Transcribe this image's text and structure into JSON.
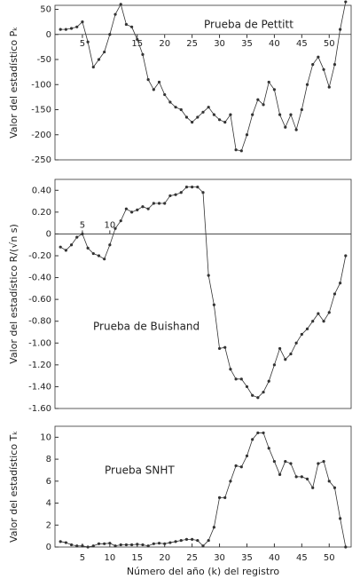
{
  "chart_data": [
    {
      "type": "line",
      "ylabel": "Valor del estadístico Pₖ",
      "annotation": "Prueba de Pettitt",
      "x": [
        1,
        2,
        3,
        4,
        5,
        6,
        7,
        8,
        9,
        10,
        11,
        12,
        13,
        14,
        15,
        16,
        17,
        18,
        19,
        20,
        21,
        22,
        23,
        24,
        25,
        26,
        27,
        28,
        29,
        30,
        31,
        32,
        33,
        34,
        35,
        36,
        37,
        38,
        39,
        40,
        41,
        42,
        43,
        44,
        45,
        46,
        47,
        48,
        49,
        50,
        51,
        52,
        53
      ],
      "series": [
        {
          "color": "#333333",
          "values": [
            10,
            10,
            12,
            15,
            25,
            -15,
            -65,
            -50,
            -35,
            0,
            40,
            60,
            20,
            15,
            -10,
            -40,
            -90,
            -110,
            -95,
            -120,
            -135,
            -145,
            -150,
            -165,
            -175,
            -165,
            -155,
            -145,
            -160,
            -170,
            -175,
            -160,
            -230,
            -232,
            -200,
            -160,
            -130,
            -140,
            -95,
            -110,
            -160,
            -185,
            -160,
            -190,
            -150,
            -100,
            -60,
            -45,
            -70,
            -105,
            -60,
            10,
            65
          ]
        }
      ],
      "xlim": [
        0,
        54
      ],
      "xticks": [
        5,
        15,
        20,
        25,
        30,
        35,
        40,
        45,
        50
      ],
      "ylim": [
        -250,
        58
      ],
      "yticks": [
        50,
        0,
        -50,
        -100,
        -150,
        -200,
        -250
      ]
    },
    {
      "type": "line",
      "ylabel": "Valor del estadístico R/(√n s)",
      "annotation": "Prueba de Buishand",
      "x": [
        1,
        2,
        3,
        4,
        5,
        6,
        7,
        8,
        9,
        10,
        11,
        12,
        13,
        14,
        15,
        16,
        17,
        18,
        19,
        20,
        21,
        22,
        23,
        24,
        25,
        26,
        27,
        28,
        29,
        30,
        31,
        32,
        33,
        34,
        35,
        36,
        37,
        38,
        39,
        40,
        41,
        42,
        43,
        44,
        45,
        46,
        47,
        48,
        49,
        50,
        51,
        52,
        53
      ],
      "series": [
        {
          "color": "#333333",
          "values": [
            -0.12,
            -0.15,
            -0.1,
            -0.03,
            0.0,
            -0.13,
            -0.18,
            -0.2,
            -0.23,
            -0.1,
            0.05,
            0.12,
            0.23,
            0.2,
            0.22,
            0.25,
            0.23,
            0.28,
            0.28,
            0.28,
            0.35,
            0.36,
            0.38,
            0.43,
            0.43,
            0.43,
            0.38,
            -0.38,
            -0.65,
            -1.05,
            -1.04,
            -1.24,
            -1.33,
            -1.33,
            -1.4,
            -1.48,
            -1.5,
            -1.45,
            -1.35,
            -1.2,
            -1.05,
            -1.15,
            -1.1,
            -1.0,
            -0.92,
            -0.87,
            -0.8,
            -0.73,
            -0.8,
            -0.72,
            -0.55,
            -0.45,
            -0.2
          ]
        }
      ],
      "xlim": [
        0,
        54
      ],
      "xticks": [
        5,
        10
      ],
      "ylim": [
        -1.6,
        0.5
      ],
      "yticks": [
        {
          "value": 0.4,
          "label": "0.40"
        },
        {
          "value": 0.2,
          "label": "0.20"
        },
        0,
        {
          "value": -0.2,
          "label": "-0.20"
        },
        {
          "value": -0.4,
          "label": "-0.40"
        },
        {
          "value": -0.6,
          "label": "-0.60"
        },
        {
          "value": -0.8,
          "label": "-0.80"
        },
        {
          "value": -1.0,
          "label": "-1.00"
        },
        {
          "value": -1.2,
          "label": "-1.20"
        },
        {
          "value": -1.4,
          "label": "-1.40"
        },
        {
          "value": -1.6,
          "label": "-1.60"
        }
      ]
    },
    {
      "type": "line",
      "ylabel": "Valor del estadístico Tₖ",
      "annotation": "Prueba SNHT",
      "xlabel": "Número del año (k) del registro",
      "x": [
        1,
        2,
        3,
        4,
        5,
        6,
        7,
        8,
        9,
        10,
        11,
        12,
        13,
        14,
        15,
        16,
        17,
        18,
        19,
        20,
        21,
        22,
        23,
        24,
        25,
        26,
        27,
        28,
        29,
        30,
        31,
        32,
        33,
        34,
        35,
        36,
        37,
        38,
        39,
        40,
        41,
        42,
        43,
        44,
        45,
        46,
        47,
        48,
        49,
        50,
        51,
        52,
        53
      ],
      "series": [
        {
          "color": "#333333",
          "values": [
            0.5,
            0.4,
            0.2,
            0.1,
            0.1,
            0.0,
            0.1,
            0.3,
            0.3,
            0.35,
            0.1,
            0.2,
            0.2,
            0.2,
            0.25,
            0.2,
            0.1,
            0.3,
            0.35,
            0.3,
            0.4,
            0.5,
            0.6,
            0.7,
            0.7,
            0.6,
            0.1,
            0.6,
            1.8,
            4.5,
            4.5,
            6.0,
            7.4,
            7.3,
            8.3,
            9.8,
            10.4,
            10.4,
            9.0,
            7.8,
            6.6,
            7.8,
            7.6,
            6.4,
            6.4,
            6.2,
            5.4,
            7.6,
            7.8,
            6.0,
            5.4,
            2.6,
            0
          ]
        }
      ],
      "xlim": [
        0,
        54
      ],
      "xticks": [
        5,
        10,
        15,
        20,
        25,
        30,
        35,
        40,
        45,
        50
      ],
      "ylim": [
        0,
        11
      ],
      "yticks": [
        0,
        2,
        4,
        6,
        8,
        10
      ]
    }
  ]
}
